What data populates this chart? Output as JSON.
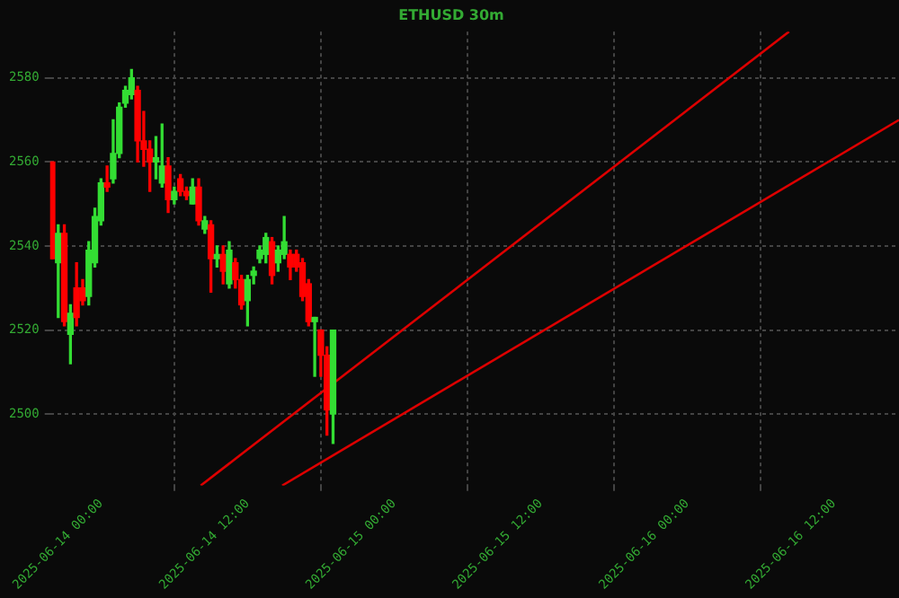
{
  "chart_data": {
    "type": "candlestick",
    "title": "ETHUSD 30m",
    "x": [
      "2025-06-13T20:00",
      "2025-06-13T20:30",
      "2025-06-13T21:00",
      "2025-06-13T21:30",
      "2025-06-13T22:00",
      "2025-06-13T22:30",
      "2025-06-13T23:00",
      "2025-06-13T23:30",
      "2025-06-14T00:00",
      "2025-06-14T00:30",
      "2025-06-14T01:00",
      "2025-06-14T01:30",
      "2025-06-14T02:00",
      "2025-06-14T02:30",
      "2025-06-14T03:00",
      "2025-06-14T03:30",
      "2025-06-14T04:00",
      "2025-06-14T04:30",
      "2025-06-14T05:00",
      "2025-06-14T05:30",
      "2025-06-14T06:00",
      "2025-06-14T06:30",
      "2025-06-14T07:00",
      "2025-06-14T07:30",
      "2025-06-14T08:00",
      "2025-06-14T08:30",
      "2025-06-14T09:00",
      "2025-06-14T09:30",
      "2025-06-14T10:00",
      "2025-06-14T10:30",
      "2025-06-14T11:00",
      "2025-06-14T11:30",
      "2025-06-14T12:00",
      "2025-06-14T12:30",
      "2025-06-14T13:00",
      "2025-06-14T13:30",
      "2025-06-14T14:00",
      "2025-06-14T14:30",
      "2025-06-14T15:00",
      "2025-06-14T15:30",
      "2025-06-14T16:00",
      "2025-06-14T16:30",
      "2025-06-14T17:00",
      "2025-06-14T17:30",
      "2025-06-14T18:00",
      "2025-06-14T18:30",
      "2025-06-14T19:00"
    ],
    "ohlc": [
      [
        2560,
        2560,
        2537,
        2537
      ],
      [
        2536,
        2545,
        2523,
        2543
      ],
      [
        2543,
        2545,
        2521,
        2522
      ],
      [
        2519,
        2526,
        2512,
        2524
      ],
      [
        2530,
        2536,
        2521,
        2523
      ],
      [
        2530,
        2532,
        2526,
        2527
      ],
      [
        2528,
        2541,
        2526,
        2539
      ],
      [
        2536,
        2549,
        2535,
        2547
      ],
      [
        2546,
        2556,
        2545,
        2555
      ],
      [
        2555,
        2559,
        2553,
        2554
      ],
      [
        2556,
        2570,
        2555,
        2562
      ],
      [
        2562,
        2574,
        2561,
        2573
      ],
      [
        2574,
        2578,
        2573,
        2577
      ],
      [
        2576,
        2582,
        2575,
        2580
      ],
      [
        2577,
        2578,
        2560,
        2565
      ],
      [
        2565,
        2572,
        2559,
        2563
      ],
      [
        2563,
        2565,
        2553,
        2560
      ],
      [
        2560,
        2566,
        2556,
        2561
      ],
      [
        2555,
        2569,
        2554,
        2559
      ],
      [
        2559,
        2561,
        2548,
        2551
      ],
      [
        2551,
        2554,
        2550,
        2553
      ],
      [
        2556,
        2557,
        2552,
        2553
      ],
      [
        2553,
        2554,
        2551,
        2552
      ],
      [
        2550,
        2556,
        2550,
        2554
      ],
      [
        2554,
        2556,
        2545,
        2546
      ],
      [
        2544,
        2547,
        2543,
        2546
      ],
      [
        2545,
        2546,
        2529,
        2537
      ],
      [
        2537,
        2540,
        2535,
        2538
      ],
      [
        2538,
        2540,
        2531,
        2534
      ],
      [
        2531,
        2541,
        2530,
        2539
      ],
      [
        2536,
        2537,
        2530,
        2532
      ],
      [
        2532,
        2533,
        2525,
        2526
      ],
      [
        2527,
        2533,
        2521,
        2532
      ],
      [
        2533,
        2535,
        2531,
        2534
      ],
      [
        2537,
        2540,
        2536,
        2539
      ],
      [
        2538,
        2543,
        2536,
        2542
      ],
      [
        2541,
        2542,
        2531,
        2533
      ],
      [
        2536,
        2540,
        2534,
        2539
      ],
      [
        2538,
        2547,
        2537,
        2541
      ],
      [
        2538,
        2539,
        2532,
        2535
      ],
      [
        2538,
        2539,
        2534,
        2535
      ],
      [
        2536,
        2537,
        2527,
        2528
      ],
      [
        2531,
        2532,
        2521,
        2522
      ],
      [
        2522,
        2523,
        2509,
        2523
      ],
      [
        2520,
        2520,
        2509,
        2514
      ],
      [
        2514,
        2516,
        2495,
        2501
      ],
      [
        2500,
        2520,
        2493,
        2520
      ]
    ],
    "colors": [
      "#ff0000",
      "#33dd33",
      "#ff0000",
      "#33dd33",
      "#ff0000",
      "#ff0000",
      "#33dd33",
      "#33dd33",
      "#33dd33",
      "#ff0000",
      "#33dd33",
      "#33dd33",
      "#33dd33",
      "#33dd33",
      "#ff0000",
      "#ff0000",
      "#ff0000",
      "#33dd33",
      "#33dd33",
      "#ff0000",
      "#33dd33",
      "#ff0000",
      "#ff0000",
      "#33dd33",
      "#ff0000",
      "#33dd33",
      "#ff0000",
      "#33dd33",
      "#ff0000",
      "#33dd33",
      "#ff0000",
      "#ff0000",
      "#33dd33",
      "#33dd33",
      "#33dd33",
      "#33dd33",
      "#ff0000",
      "#33dd33",
      "#33dd33",
      "#ff0000",
      "#ff0000",
      "#ff0000",
      "#ff0000",
      "#33dd33",
      "#ff0000",
      "#ff0000",
      "#33dd33"
    ],
    "series": [
      {
        "type": "line",
        "color": "#dd0000",
        "x": [
          "2025-06-14T08:10",
          "2025-06-16T08:20"
        ],
        "values": [
          2483,
          2591
        ]
      },
      {
        "type": "line",
        "color": "#dd0000",
        "x": [
          "2025-06-14T14:50",
          "2025-06-16T17:20"
        ],
        "values": [
          2483,
          2570
        ]
      }
    ],
    "xlim": [
      "2025-06-13T19:50",
      "2025-06-16T17:20"
    ],
    "xticks": [
      {
        "value": "2025-06-14T00:00",
        "label": "2025-06-14 00:00"
      },
      {
        "value": "2025-06-14T12:00",
        "label": "2025-06-14 12:00"
      },
      {
        "value": "2025-06-15T00:00",
        "label": "2025-06-15 00:00"
      },
      {
        "value": "2025-06-15T12:00",
        "label": "2025-06-15 12:00"
      },
      {
        "value": "2025-06-16T00:00",
        "label": "2025-06-16 00:00"
      },
      {
        "value": "2025-06-16T12:00",
        "label": "2025-06-16 12:00"
      }
    ],
    "ylim": [
      2483,
      2591
    ],
    "yticks": [
      2500,
      2520,
      2540,
      2560,
      2580
    ],
    "grid": true
  }
}
